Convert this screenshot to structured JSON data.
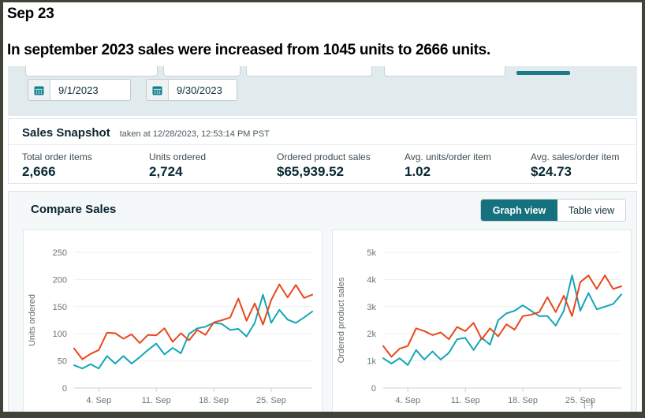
{
  "frame": {
    "border_color": "#3f4438"
  },
  "annotation": {
    "line1": "Sep 23",
    "line2": "In september 2023 sales were increased from 1045 units to 2666 units."
  },
  "filter_bar": {
    "start_date": "9/1/2023",
    "end_date": "9/30/2023",
    "apply_bar_color": "#1d7a88"
  },
  "snapshot": {
    "title": "Sales Snapshot",
    "taken_at": "taken at 12/28/2023, 12:53:14 PM PST",
    "metrics": [
      {
        "label": "Total order items",
        "value": "2,666"
      },
      {
        "label": "Units ordered",
        "value": "2,724"
      },
      {
        "label": "Ordered product sales",
        "value": "$65,939.52"
      },
      {
        "label": "Avg. units/order item",
        "value": "1.02"
      },
      {
        "label": "Avg. sales/order item",
        "value": "$24.73"
      }
    ]
  },
  "compare": {
    "title": "Compare Sales",
    "graph_view_label": "Graph view",
    "table_view_label": "Table view",
    "active_color": "#16717e"
  },
  "footer_hint": "[..]",
  "colors": {
    "teal_series": "#14a5b8",
    "red_series": "#e8481c"
  },
  "chart_data": [
    {
      "type": "line",
      "ylabel": "Units ordered",
      "x": [
        1,
        2,
        3,
        4,
        5,
        6,
        7,
        8,
        9,
        10,
        11,
        12,
        13,
        14,
        15,
        16,
        17,
        18,
        19,
        20,
        21,
        22,
        23,
        24,
        25,
        26,
        27,
        28,
        29,
        30
      ],
      "x_unit": "day of September",
      "ylim": [
        0,
        250
      ],
      "yticks": [
        {
          "value": 0,
          "label": "0"
        },
        {
          "value": 50,
          "label": "50"
        },
        {
          "value": 100,
          "label": "100"
        },
        {
          "value": 150,
          "label": "150"
        },
        {
          "value": 200,
          "label": "200"
        },
        {
          "value": 250,
          "label": "250"
        }
      ],
      "xticks": [
        {
          "index": 3,
          "label": "4. Sep"
        },
        {
          "index": 10,
          "label": "11. Sep"
        },
        {
          "index": 17,
          "label": "18. Sep"
        },
        {
          "index": 24,
          "label": "25. Sep"
        }
      ],
      "grid": true,
      "legend": "none",
      "series": [
        {
          "name": "teal",
          "color": "#14a5b8",
          "values": [
            42,
            36,
            44,
            36,
            59,
            45,
            59,
            45,
            57,
            70,
            82,
            62,
            74,
            64,
            100,
            110,
            113,
            120,
            118,
            107,
            109,
            95,
            120,
            172,
            120,
            144,
            126,
            120,
            130,
            141
          ]
        },
        {
          "name": "red",
          "color": "#e8481c",
          "values": [
            73,
            53,
            63,
            70,
            102,
            101,
            91,
            99,
            83,
            98,
            97,
            110,
            85,
            101,
            88,
            107,
            98,
            121,
            125,
            130,
            165,
            124,
            156,
            117,
            162,
            191,
            167,
            190,
            166,
            172
          ]
        }
      ]
    },
    {
      "type": "line",
      "ylabel": "Ordered product sales",
      "x": [
        1,
        2,
        3,
        4,
        5,
        6,
        7,
        8,
        9,
        10,
        11,
        12,
        13,
        14,
        15,
        16,
        17,
        18,
        19,
        20,
        21,
        22,
        23,
        24,
        25,
        26,
        27,
        28,
        29,
        30
      ],
      "x_unit": "day of September",
      "ylim": [
        0,
        5000
      ],
      "yticks": [
        {
          "value": 0,
          "label": "0"
        },
        {
          "value": 1000,
          "label": "1k"
        },
        {
          "value": 2000,
          "label": "2k"
        },
        {
          "value": 3000,
          "label": "3k"
        },
        {
          "value": 4000,
          "label": "4k"
        },
        {
          "value": 5000,
          "label": "5k"
        }
      ],
      "xticks": [
        {
          "index": 3,
          "label": "4. Sep"
        },
        {
          "index": 10,
          "label": "11. Sep"
        },
        {
          "index": 17,
          "label": "18. Sep"
        },
        {
          "index": 24,
          "label": "25. Sep"
        }
      ],
      "grid": true,
      "legend": "none",
      "series": [
        {
          "name": "teal",
          "color": "#14a5b8",
          "values": [
            1100,
            900,
            1100,
            850,
            1400,
            1050,
            1350,
            1050,
            1300,
            1800,
            1850,
            1400,
            1850,
            1600,
            2500,
            2750,
            2850,
            3050,
            2850,
            2650,
            2650,
            2300,
            2850,
            4150,
            2850,
            3500,
            2900,
            3000,
            3100,
            3450
          ]
        },
        {
          "name": "red",
          "color": "#e8481c",
          "values": [
            1550,
            1150,
            1450,
            1550,
            2200,
            2100,
            1950,
            2050,
            1800,
            2250,
            2100,
            2400,
            1800,
            2200,
            1900,
            2350,
            2150,
            2650,
            2700,
            2800,
            3350,
            2800,
            3400,
            2650,
            3900,
            4150,
            3650,
            4150,
            3650,
            3750
          ]
        }
      ]
    }
  ]
}
